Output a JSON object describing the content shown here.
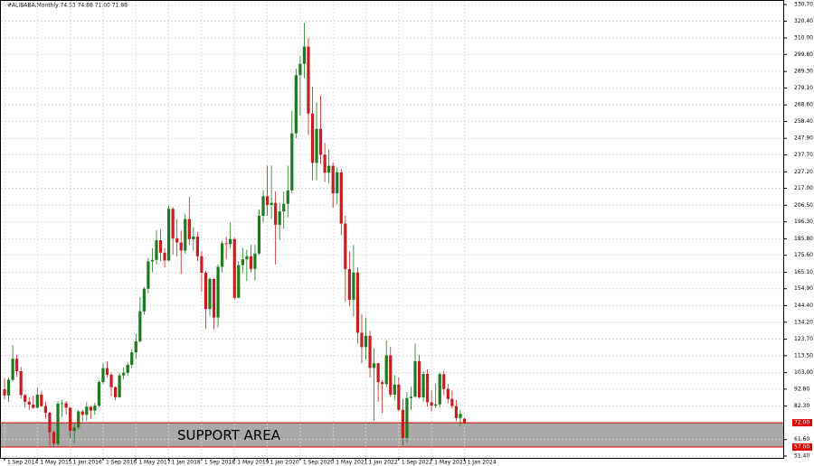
{
  "chart_data": {
    "type": "candlestick",
    "title": "#ALIBABA,Monthly  74.53 74.88 71.00 71.88",
    "categories": [
      "1 Sep 2014",
      null,
      null,
      null,
      null,
      null,
      null,
      null,
      "1 May 2015",
      null,
      null,
      null,
      null,
      null,
      null,
      null,
      "1 Jan 2016",
      null,
      null,
      null,
      null,
      null,
      null,
      null,
      "1 Sep 2016",
      null,
      null,
      null,
      null,
      null,
      null,
      null,
      "1 May 2017",
      null,
      null,
      null,
      null,
      null,
      null,
      null,
      "1 Jan 2018",
      null,
      null,
      null,
      null,
      null,
      null,
      null,
      "1 Sep 2018",
      null,
      null,
      null,
      null,
      null,
      null,
      null,
      "1 May 2019",
      null,
      null,
      null,
      null,
      null,
      null,
      null,
      "1 Jan 2020",
      null,
      null,
      null,
      null,
      null,
      null,
      null,
      "1 Sep 2020",
      null,
      null,
      null,
      null,
      null,
      null,
      null,
      "1 May 2021",
      null,
      null,
      null,
      null,
      null,
      null,
      null,
      "1 Jan 2022",
      null,
      null,
      null,
      null,
      null,
      null,
      null,
      "1 Sep 2022",
      null,
      null,
      null,
      null,
      null,
      null,
      null,
      "1 May 2023",
      null,
      null,
      null,
      null,
      null,
      null,
      null,
      "1 Jan 2024"
    ],
    "open": [
      92.7,
      88.9,
      98.6,
      111.6,
      103.9,
      89.1,
      85.0,
      83.2,
      81.3,
      89.4,
      82.3,
      78.2,
      66.1,
      59.0,
      83.8,
      84.1,
      81.3,
      67.0,
      69.1,
      79.0,
      76.9,
      81.9,
      79.5,
      82.6,
      97.2,
      105.8,
      101.7,
      94.0,
      87.8,
      101.3,
      102.9,
      107.8,
      115.5,
      122.4,
      140.9,
      154.9,
      171.8,
      172.7,
      184.9,
      177.2,
      172.4,
      204.3,
      186.1,
      183.5,
      178.5,
      198.0,
      185.5,
      187.2,
      175.0,
      164.8,
      142.3,
      160.9,
      137.1,
      168.5,
      183.0,
      182.5,
      185.6,
      149.3,
      169.5,
      173.1,
      175.0,
      167.2,
      176.7,
      200.0,
      212.1,
      206.7,
      208.0,
      194.5,
      202.7,
      207.4,
      215.7,
      251.0,
      287.0,
      294.0,
      304.7,
      263.3,
      232.7,
      253.8,
      237.8,
      226.7,
      230.9,
      213.9,
      226.8,
      195.2,
      167.0,
      148.1,
      164.9,
      127.7,
      118.8,
      125.8,
      105.9,
      108.8,
      97.1,
      95.9,
      113.7,
      89.4,
      95.6,
      80.0,
      62.6,
      87.3,
      88.1,
      110.1,
      87.7,
      102.2,
      84.7,
      82.6,
      83.4,
      102.1,
      92.9,
      86.7,
      82.3,
      74.9,
      74.53
    ],
    "high": [
      99.7,
      100.0,
      120.0,
      114.0,
      106.5,
      89.8,
      87.8,
      88.7,
      93.6,
      91.7,
      84.9,
      78.9,
      67.3,
      85.2,
      86.2,
      85.5,
      81.5,
      72.0,
      80.0,
      80.1,
      85.0,
      82.5,
      84.3,
      98.2,
      109.0,
      109.9,
      103.0,
      94.4,
      103.0,
      106.2,
      109.2,
      117.5,
      127.0,
      149.8,
      156.0,
      174.0,
      180.0,
      191.0,
      191.8,
      180.0,
      206.2,
      205.5,
      198.0,
      191.0,
      201.0,
      211.7,
      193.0,
      190.0,
      178.0,
      166.0,
      162.0,
      161.5,
      170.0,
      184.5,
      187.0,
      196.0,
      186.5,
      172.0,
      180.0,
      179.0,
      182.0,
      182.0,
      204.0,
      216.0,
      231.0,
      231.1,
      215.0,
      208.0,
      215.0,
      231.0,
      265.0,
      291.0,
      299.0,
      319.3,
      310.0,
      280.0,
      270.0,
      274.3,
      245.0,
      241.0,
      233.0,
      230.0,
      229.0,
      200.0,
      178.0,
      182.0,
      168.0,
      139.0,
      137.0,
      129.0,
      118.0,
      109.0,
      98.5,
      123.0,
      119.0,
      101.5,
      100.0,
      87.0,
      91.0,
      94.0,
      121.0,
      114.0,
      104.0,
      105.0,
      92.0,
      96.0,
      103.0,
      104.0,
      96.0,
      92.0,
      86.0,
      80.0,
      74.88
    ],
    "low": [
      86.6,
      85.0,
      97.5,
      100.5,
      87.0,
      81.5,
      80.0,
      80.5,
      80.8,
      81.7,
      74.6,
      58.0,
      57.2,
      57.9,
      75.7,
      77.0,
      62.4,
      59.3,
      67.7,
      72.8,
      73.0,
      74.5,
      77.0,
      81.5,
      96.0,
      100.2,
      88.5,
      86.0,
      87.5,
      99.0,
      101.0,
      106.0,
      111.5,
      121.5,
      139.0,
      152.0,
      165.0,
      170.0,
      172.0,
      168.0,
      172.0,
      176.0,
      175.0,
      164.0,
      176.5,
      182.0,
      178.5,
      172.0,
      153.0,
      130.0,
      138.0,
      129.8,
      131.0,
      165.0,
      173.0,
      180.0,
      148.0,
      149.0,
      164.5,
      159.6,
      165.0,
      160.0,
      176.0,
      196.0,
      200.0,
      198.0,
      169.9,
      185.0,
      192.0,
      199.0,
      214.0,
      248.0,
      262.0,
      285.0,
      250.0,
      222.0,
      222.0,
      232.0,
      221.0,
      220.0,
      205.0,
      207.0,
      188.0,
      147.0,
      144.0,
      138.0,
      121.0,
      108.7,
      111.0,
      100.0,
      73.3,
      85.0,
      78.0,
      94.0,
      88.0,
      86.0,
      79.0,
      58.0,
      60.0,
      80.0,
      87.5,
      87.0,
      85.0,
      82.0,
      79.0,
      81.0,
      81.5,
      89.0,
      84.0,
      81.0,
      73.0,
      70.0,
      71.0
    ],
    "close": [
      88.9,
      98.6,
      111.6,
      103.9,
      89.1,
      85.0,
      83.2,
      81.3,
      89.4,
      82.3,
      78.2,
      66.1,
      59.0,
      83.8,
      84.1,
      81.3,
      67.0,
      69.1,
      79.0,
      76.9,
      81.9,
      79.5,
      82.6,
      97.2,
      105.8,
      101.7,
      94.0,
      87.8,
      101.3,
      102.9,
      107.8,
      115.5,
      122.4,
      140.9,
      154.9,
      171.8,
      172.7,
      184.9,
      177.2,
      172.4,
      204.3,
      186.1,
      183.5,
      178.5,
      198.0,
      185.5,
      187.2,
      175.0,
      164.8,
      142.3,
      160.9,
      137.1,
      168.5,
      183.0,
      182.5,
      185.6,
      149.3,
      169.5,
      173.1,
      175.0,
      167.2,
      176.7,
      200.0,
      212.1,
      206.7,
      208.0,
      194.5,
      202.7,
      207.4,
      215.7,
      251.0,
      287.0,
      294.0,
      304.7,
      263.3,
      232.7,
      253.8,
      237.8,
      226.7,
      230.9,
      213.9,
      226.8,
      195.2,
      167.0,
      148.1,
      164.9,
      127.7,
      118.8,
      125.8,
      105.9,
      108.8,
      97.1,
      95.9,
      113.7,
      89.4,
      95.6,
      80.0,
      62.6,
      87.3,
      88.1,
      110.1,
      87.7,
      102.2,
      84.7,
      82.6,
      83.4,
      102.1,
      92.9,
      86.7,
      82.3,
      74.9,
      77.5,
      71.88
    ],
    "up_color": "#1e7a1e",
    "down_color": "#c41e1e",
    "ylim": [
      51.4,
      330.7
    ],
    "yticks": [
      {
        "value": 330.7,
        "label": "330.70"
      },
      {
        "value": 320.4,
        "label": "320.40"
      },
      {
        "value": 310.0,
        "label": "310.00"
      },
      {
        "value": 299.8,
        "label": "299.80"
      },
      {
        "value": 289.3,
        "label": "289.30"
      },
      {
        "value": 279.1,
        "label": "279.10"
      },
      {
        "value": 268.6,
        "label": "268.60"
      },
      {
        "value": 258.4,
        "label": "258.40"
      },
      {
        "value": 247.9,
        "label": "247.90"
      },
      {
        "value": 237.7,
        "label": "237.70"
      },
      {
        "value": 227.2,
        "label": "227.20"
      },
      {
        "value": 217.0,
        "label": "217.00"
      },
      {
        "value": 206.5,
        "label": "206.50"
      },
      {
        "value": 196.3,
        "label": "196.30"
      },
      {
        "value": 185.8,
        "label": "185.80"
      },
      {
        "value": 175.6,
        "label": "175.60"
      },
      {
        "value": 165.1,
        "label": "165.10"
      },
      {
        "value": 154.9,
        "label": "154.90"
      },
      {
        "value": 144.4,
        "label": "144.40"
      },
      {
        "value": 134.2,
        "label": "134.20"
      },
      {
        "value": 123.7,
        "label": "123.70"
      },
      {
        "value": 113.5,
        "label": "113.50"
      },
      {
        "value": 103.0,
        "label": "103.00"
      },
      {
        "value": 92.8,
        "label": "92.80"
      },
      {
        "value": 82.3,
        "label": "82.30"
      },
      {
        "value": 61.6,
        "label": "61.60"
      },
      {
        "value": 51.4,
        "label": "51.40"
      }
    ],
    "grid": true,
    "levels": [
      {
        "value": 72,
        "label": "72.00"
      },
      {
        "value": 57,
        "label": "57.00"
      }
    ],
    "annotation": "SUPPORT AREA"
  }
}
